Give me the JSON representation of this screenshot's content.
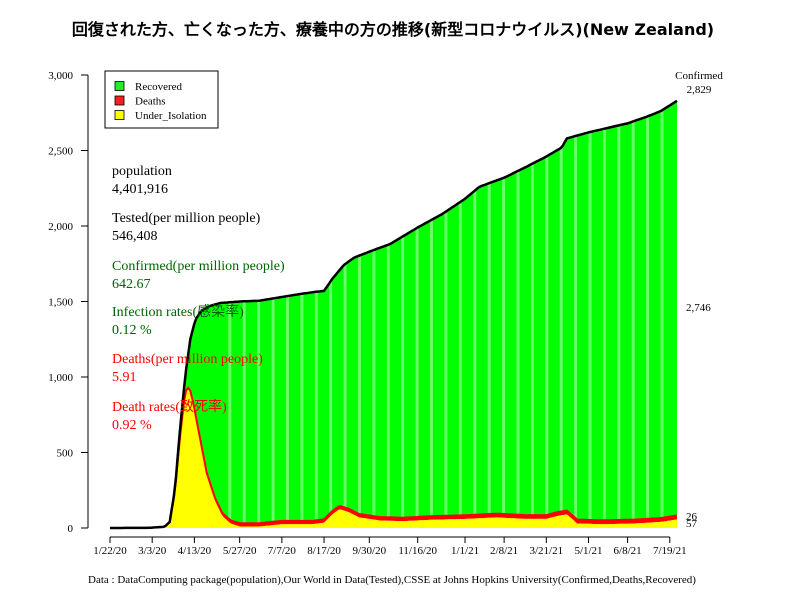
{
  "chart_data": {
    "type": "area",
    "title": "回復された方、亡くなった方、療養中の方の推移(新型コロナウイルス)(New Zealand)",
    "caption": "Data : DataComputing package(population),Our World in Data(Tested),CSSE at Johns Hopkins University(Confirmed,Deaths,Recovered)",
    "x_tick_labels": [
      "1/22/20",
      "3/3/20",
      "4/13/20",
      "5/27/20",
      "7/7/20",
      "8/17/20",
      "9/30/20",
      "11/16/20",
      "1/1/21",
      "2/8/21",
      "3/21/21",
      "5/1/21",
      "6/8/21",
      "7/19/21"
    ],
    "x_ticks": [
      "2020-01-22",
      "2020-03-03",
      "2020-04-13",
      "2020-05-27",
      "2020-07-07",
      "2020-08-17",
      "2020-09-30",
      "2020-11-16",
      "2021-01-01",
      "2021-02-08",
      "2021-03-21",
      "2021-05-01",
      "2021-06-08",
      "2021-07-19"
    ],
    "ylim": [
      0,
      3000
    ],
    "y_ticks": [
      0,
      500,
      1000,
      1500,
      2000,
      2500,
      3000
    ],
    "y_tick_labels": [
      "0",
      "500",
      "1,000",
      "1,500",
      "2,000",
      "2,500",
      "3,000"
    ],
    "legend": {
      "position": "top-left",
      "entries": [
        {
          "label": "Recovered",
          "color": "#22ee22"
        },
        {
          "label": "Deaths",
          "color": "#ee2222"
        },
        {
          "label": "Under_Isolation",
          "color": "#ffff00"
        }
      ]
    },
    "colors": {
      "recovered": "#00ff00",
      "recovered_stripe": "#66ff66",
      "deaths": "#ff0000",
      "under_isolation": "#ffff00",
      "confirmed_line": "#000000"
    },
    "series": [
      {
        "name": "Confirmed",
        "color": "#000000",
        "points": [
          [
            "2020-01-22",
            0
          ],
          [
            "2020-02-28",
            1
          ],
          [
            "2020-03-15",
            8
          ],
          [
            "2020-03-20",
            40
          ],
          [
            "2020-03-25",
            250
          ],
          [
            "2020-03-30",
            650
          ],
          [
            "2020-04-04",
            1000
          ],
          [
            "2020-04-09",
            1250
          ],
          [
            "2020-04-14",
            1380
          ],
          [
            "2020-04-20",
            1440
          ],
          [
            "2020-04-28",
            1470
          ],
          [
            "2020-05-08",
            1490
          ],
          [
            "2020-05-27",
            1500
          ],
          [
            "2020-06-15",
            1505
          ],
          [
            "2020-07-07",
            1530
          ],
          [
            "2020-07-25",
            1550
          ],
          [
            "2020-08-10",
            1565
          ],
          [
            "2020-08-17",
            1570
          ],
          [
            "2020-08-25",
            1650
          ],
          [
            "2020-09-05",
            1740
          ],
          [
            "2020-09-15",
            1790
          ],
          [
            "2020-09-30",
            1830
          ],
          [
            "2020-10-20",
            1880
          ],
          [
            "2020-11-16",
            1990
          ],
          [
            "2020-12-10",
            2080
          ],
          [
            "2021-01-01",
            2180
          ],
          [
            "2021-01-15",
            2260
          ],
          [
            "2021-02-08",
            2320
          ],
          [
            "2021-03-01",
            2390
          ],
          [
            "2021-03-21",
            2460
          ],
          [
            "2021-04-05",
            2520
          ],
          [
            "2021-04-10",
            2580
          ],
          [
            "2021-05-01",
            2620
          ],
          [
            "2021-05-20",
            2650
          ],
          [
            "2021-06-08",
            2680
          ],
          [
            "2021-06-25",
            2720
          ],
          [
            "2021-07-10",
            2760
          ],
          [
            "2021-07-26",
            2829
          ]
        ]
      },
      {
        "name": "Deaths",
        "color": "#ff0000",
        "points": [
          [
            "2020-01-22",
            0
          ],
          [
            "2020-03-28",
            0
          ],
          [
            "2020-04-15",
            9
          ],
          [
            "2020-05-01",
            19
          ],
          [
            "2020-05-27",
            22
          ],
          [
            "2020-08-17",
            22
          ],
          [
            "2021-02-15",
            25
          ],
          [
            "2021-07-26",
            26
          ]
        ]
      },
      {
        "name": "Under_Isolation",
        "color": "#ffff00",
        "points": [
          [
            "2020-01-22",
            0
          ],
          [
            "2020-02-28",
            1
          ],
          [
            "2020-03-15",
            8
          ],
          [
            "2020-03-20",
            40
          ],
          [
            "2020-03-25",
            240
          ],
          [
            "2020-03-30",
            600
          ],
          [
            "2020-04-04",
            900
          ],
          [
            "2020-04-08",
            930
          ],
          [
            "2020-04-12",
            820
          ],
          [
            "2020-04-18",
            600
          ],
          [
            "2020-04-25",
            350
          ],
          [
            "2020-05-03",
            180
          ],
          [
            "2020-05-10",
            80
          ],
          [
            "2020-05-18",
            30
          ],
          [
            "2020-05-27",
            10
          ],
          [
            "2020-06-15",
            10
          ],
          [
            "2020-07-07",
            25
          ],
          [
            "2020-08-05",
            25
          ],
          [
            "2020-08-17",
            35
          ],
          [
            "2020-08-25",
            90
          ],
          [
            "2020-09-01",
            125
          ],
          [
            "2020-09-10",
            105
          ],
          [
            "2020-09-20",
            70
          ],
          [
            "2020-10-10",
            50
          ],
          [
            "2020-11-01",
            45
          ],
          [
            "2020-12-01",
            55
          ],
          [
            "2021-01-01",
            60
          ],
          [
            "2021-02-01",
            70
          ],
          [
            "2021-03-01",
            60
          ],
          [
            "2021-03-21",
            60
          ],
          [
            "2021-04-01",
            80
          ],
          [
            "2021-04-10",
            90
          ],
          [
            "2021-04-20",
            30
          ],
          [
            "2021-05-15",
            25
          ],
          [
            "2021-06-15",
            30
          ],
          [
            "2021-07-10",
            40
          ],
          [
            "2021-07-26",
            57
          ]
        ]
      }
    ],
    "series_end_labels": [
      {
        "series": "Confirmed",
        "label": "Confirmed",
        "value_label": "2,829",
        "color": "#006400"
      },
      {
        "series": "Recovered",
        "value_label": "2,746",
        "color": "#000000"
      },
      {
        "series": "Deaths",
        "value_label": "26",
        "color": "#000000"
      },
      {
        "series": "Under_Isolation",
        "value_label": "57",
        "color": "#000000"
      }
    ],
    "stats": [
      {
        "label": "population",
        "value": "4,401,916",
        "color": "#000000"
      },
      {
        "label": "Tested(per million people)",
        "value": "546,408",
        "color": "#000000"
      },
      {
        "label": "Confirmed(per million people)",
        "value": "642.67",
        "color": "#006400"
      },
      {
        "label": "Infection rates(感染率)",
        "value": "0.12 %",
        "color": "#006400"
      },
      {
        "label": "Deaths(per million people)",
        "value": "5.91",
        "color": "#ff0000"
      },
      {
        "label": "Death rates(致死率)",
        "value": "0.92 %",
        "color": "#ff0000"
      }
    ]
  }
}
